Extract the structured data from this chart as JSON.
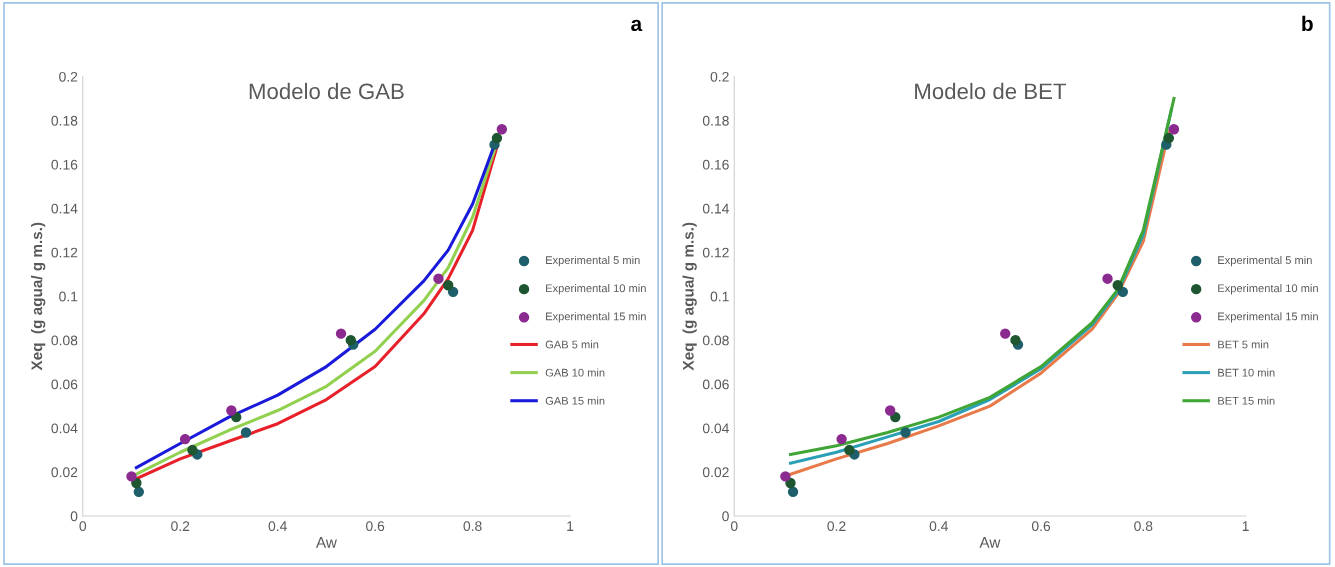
{
  "chart_data": [
    {
      "type": "scatter",
      "title": "Modelo de GAB",
      "xlabel": "Aw",
      "ylabel": "Xeq  (g agua/ g m.s.)",
      "annotations": [
        "a"
      ],
      "xlim": [
        0,
        1
      ],
      "ylim": [
        0,
        0.2
      ],
      "xticks": [
        0,
        0.2,
        0.4,
        0.6,
        0.8,
        1
      ],
      "yticks": [
        0,
        0.02,
        0.04,
        0.06,
        0.08,
        0.1,
        0.12,
        0.14,
        0.16,
        0.18,
        0.2
      ],
      "grid": false,
      "legend": "right",
      "series": [
        {
          "name": "Experimental 5 min",
          "marker": "circle",
          "color": "#1f5f6b",
          "x": [
            0.115,
            0.235,
            0.335,
            0.555,
            0.76,
            0.845
          ],
          "values": [
            0.011,
            0.028,
            0.038,
            0.078,
            0.102,
            0.169
          ]
        },
        {
          "name": "Experimental 10 min",
          "marker": "circle",
          "color": "#1e5631",
          "x": [
            0.11,
            0.225,
            0.315,
            0.55,
            0.75,
            0.85
          ],
          "values": [
            0.015,
            0.03,
            0.045,
            0.08,
            0.105,
            0.172
          ]
        },
        {
          "name": "Experimental 15 min",
          "marker": "circle",
          "color": "#8b2a8f",
          "x": [
            0.1,
            0.21,
            0.305,
            0.53,
            0.73,
            0.86
          ],
          "values": [
            0.018,
            0.035,
            0.048,
            0.083,
            0.108,
            0.176
          ]
        },
        {
          "name": "GAB 5 min",
          "type": "line",
          "marker": "none",
          "color": "#e8202a",
          "x": [
            0.11,
            0.2,
            0.3,
            0.4,
            0.5,
            0.6,
            0.7,
            0.75,
            0.8,
            0.85
          ],
          "values": [
            0.017,
            0.026,
            0.034,
            0.042,
            0.053,
            0.068,
            0.092,
            0.108,
            0.13,
            0.168
          ]
        },
        {
          "name": "GAB 10 min",
          "type": "line",
          "marker": "none",
          "color": "#92d050",
          "x": [
            0.11,
            0.2,
            0.3,
            0.4,
            0.5,
            0.6,
            0.7,
            0.75,
            0.8,
            0.85
          ],
          "values": [
            0.019,
            0.029,
            0.039,
            0.048,
            0.059,
            0.075,
            0.098,
            0.113,
            0.136,
            0.17
          ]
        },
        {
          "name": "GAB 15 min",
          "type": "line",
          "marker": "none",
          "color": "#1a1adb",
          "x": [
            0.11,
            0.2,
            0.3,
            0.4,
            0.5,
            0.6,
            0.7,
            0.75,
            0.8,
            0.85
          ],
          "values": [
            0.022,
            0.033,
            0.045,
            0.055,
            0.068,
            0.085,
            0.107,
            0.121,
            0.142,
            0.172
          ]
        }
      ]
    },
    {
      "type": "scatter",
      "title": "Modelo de BET",
      "xlabel": "Aw",
      "ylabel": "Xeq  (g agua/ g m.s.)",
      "annotations": [
        "b"
      ],
      "xlim": [
        0,
        1
      ],
      "ylim": [
        0,
        0.2
      ],
      "xticks": [
        0,
        0.2,
        0.4,
        0.6,
        0.8,
        1
      ],
      "yticks": [
        0,
        0.02,
        0.04,
        0.06,
        0.08,
        0.1,
        0.12,
        0.14,
        0.16,
        0.18,
        0.2
      ],
      "grid": false,
      "legend": "right",
      "series": [
        {
          "name": "Experimental 5 min",
          "marker": "circle",
          "color": "#1f5f6b",
          "x": [
            0.115,
            0.235,
            0.335,
            0.555,
            0.76,
            0.845
          ],
          "values": [
            0.011,
            0.028,
            0.038,
            0.078,
            0.102,
            0.169
          ]
        },
        {
          "name": "Experimental 10 min",
          "marker": "circle",
          "color": "#1e5631",
          "x": [
            0.11,
            0.225,
            0.315,
            0.55,
            0.75,
            0.85
          ],
          "values": [
            0.015,
            0.03,
            0.045,
            0.08,
            0.105,
            0.172
          ]
        },
        {
          "name": "Experimental 15 min",
          "marker": "circle",
          "color": "#8b2a8f",
          "x": [
            0.1,
            0.21,
            0.305,
            0.53,
            0.73,
            0.86
          ],
          "values": [
            0.018,
            0.035,
            0.048,
            0.083,
            0.108,
            0.176
          ]
        },
        {
          "name": "BET 5 min",
          "type": "line",
          "marker": "none",
          "color": "#e87a4a",
          "x": [
            0.11,
            0.2,
            0.3,
            0.4,
            0.5,
            0.6,
            0.7,
            0.75,
            0.8,
            0.85
          ],
          "values": [
            0.019,
            0.026,
            0.033,
            0.041,
            0.05,
            0.065,
            0.085,
            0.101,
            0.125,
            0.175
          ]
        },
        {
          "name": "BET 10 min",
          "type": "line",
          "marker": "none",
          "color": "#2a9fb5",
          "x": [
            0.11,
            0.2,
            0.3,
            0.4,
            0.5,
            0.6,
            0.7,
            0.75,
            0.8,
            0.855
          ],
          "values": [
            0.024,
            0.029,
            0.036,
            0.043,
            0.053,
            0.067,
            0.087,
            0.102,
            0.128,
            0.185
          ]
        },
        {
          "name": "BET 15 min",
          "type": "line",
          "marker": "none",
          "color": "#3fa535",
          "x": [
            0.11,
            0.2,
            0.3,
            0.4,
            0.5,
            0.6,
            0.7,
            0.75,
            0.8,
            0.86
          ],
          "values": [
            0.028,
            0.032,
            0.038,
            0.045,
            0.054,
            0.068,
            0.088,
            0.103,
            0.13,
            0.19
          ]
        }
      ]
    }
  ]
}
